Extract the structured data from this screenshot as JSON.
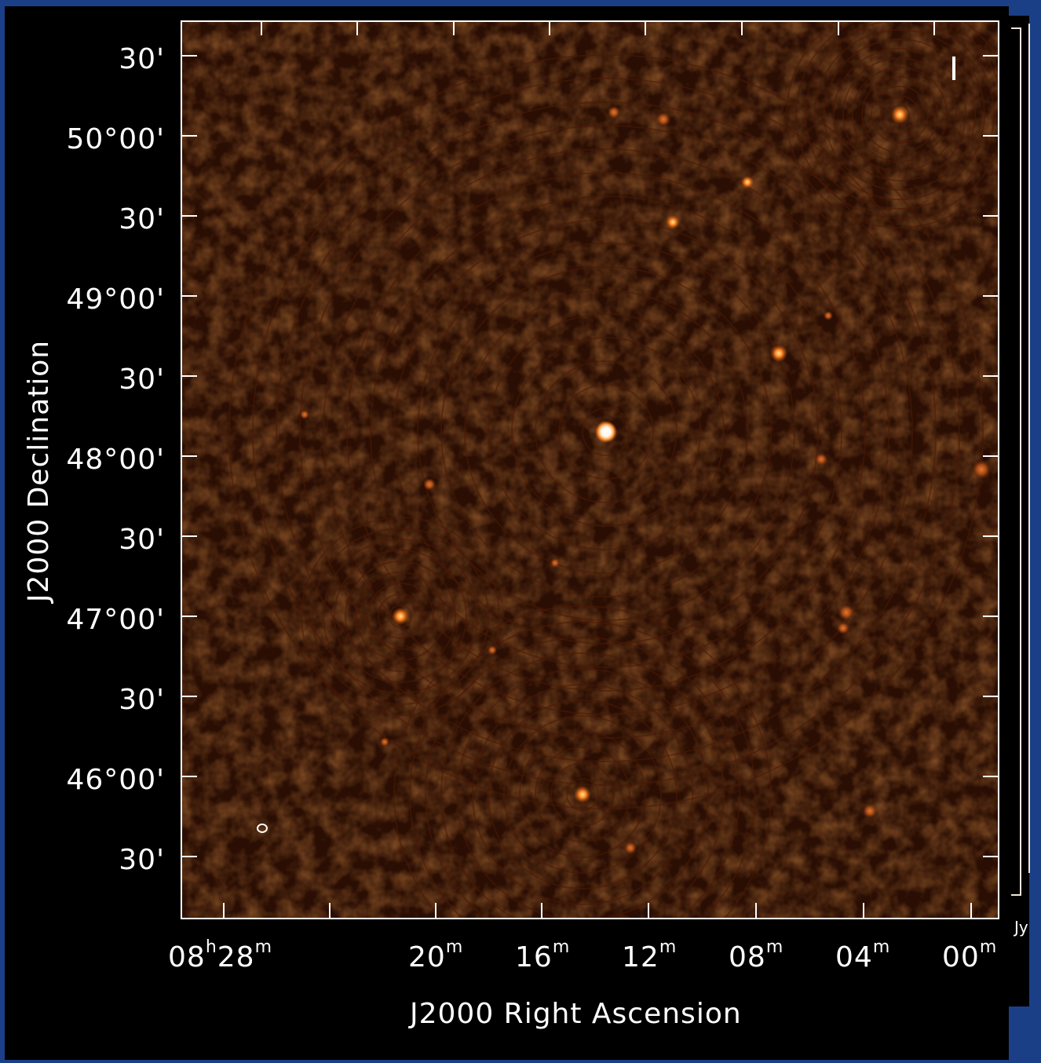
{
  "figure": {
    "x_axis_title": "J2000 Right Ascension",
    "y_axis_title": "J2000 Declination",
    "x_tick_labels": [
      {
        "hours": "08",
        "hour_unit": "h",
        "minutes": "28",
        "minute_unit": "m"
      },
      {
        "hours": "",
        "hour_unit": "",
        "minutes": "20",
        "minute_unit": "m"
      },
      {
        "hours": "",
        "hour_unit": "",
        "minutes": "16",
        "minute_unit": "m"
      },
      {
        "hours": "",
        "hour_unit": "",
        "minutes": "12",
        "minute_unit": "m"
      },
      {
        "hours": "",
        "hour_unit": "",
        "minutes": "08",
        "minute_unit": "m"
      },
      {
        "hours": "",
        "hour_unit": "",
        "minutes": "04",
        "minute_unit": "m"
      },
      {
        "hours": "",
        "hour_unit": "",
        "minutes": "00",
        "minute_unit": "m"
      }
    ],
    "y_tick_labels": [
      "30'",
      "50°00'",
      "30'",
      "49°00'",
      "30'",
      "48°00'",
      "30'",
      "47°00'",
      "30'",
      "46°00'",
      "30'"
    ],
    "colormap": {
      "low": "#000000",
      "mid": "#7a2a0a",
      "high": "#ff9a3c",
      "peak": "#ffffff"
    },
    "colors": {
      "background_outer": "#1b3f86",
      "panel": "#000000",
      "axes": "#ffffff"
    }
  }
}
